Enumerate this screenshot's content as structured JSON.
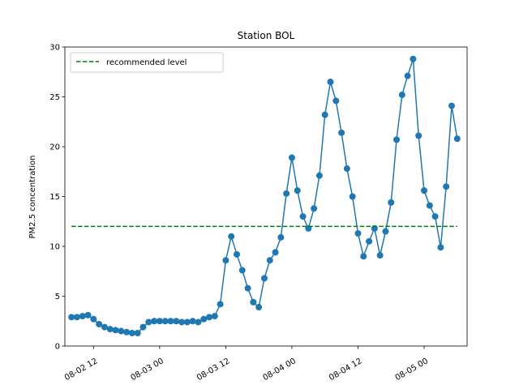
{
  "chart_data": {
    "type": "line",
    "title": "Station BOL",
    "xlabel": "",
    "ylabel": "PM2.5 concentration",
    "x_tick_labels": [
      "08-02 12",
      "08-03 00",
      "08-03 12",
      "08-04 00",
      "08-04 12",
      "08-05 00"
    ],
    "x_tick_hours": [
      12,
      24,
      36,
      48,
      60,
      72
    ],
    "y_ticks": [
      0,
      5,
      10,
      15,
      20,
      25,
      30
    ],
    "xlim": [
      6.8,
      79.8
    ],
    "ylim": [
      0,
      30
    ],
    "grid": false,
    "legend_position": "upper-left",
    "series": [
      {
        "type": "line-markers",
        "color": "#1f77b4",
        "x_hours": [
          8,
          9,
          10,
          11,
          12,
          13,
          14,
          15,
          16,
          17,
          18,
          19,
          20,
          21,
          22,
          23,
          24,
          25,
          26,
          27,
          28,
          29,
          30,
          31,
          32,
          33,
          34,
          35,
          36,
          37,
          38,
          39,
          40,
          41,
          42,
          43,
          44,
          45,
          46,
          47,
          48,
          49,
          50,
          51,
          52,
          53,
          54,
          55,
          56,
          57,
          58,
          59,
          60,
          61,
          62,
          63,
          64,
          65,
          66,
          67,
          68,
          69,
          70,
          71,
          72,
          73,
          74,
          75,
          76,
          77,
          78
        ],
        "values": [
          2.9,
          2.9,
          3.0,
          3.1,
          2.7,
          2.2,
          1.9,
          1.7,
          1.6,
          1.5,
          1.4,
          1.3,
          1.3,
          1.9,
          2.4,
          2.5,
          2.5,
          2.5,
          2.5,
          2.5,
          2.4,
          2.4,
          2.5,
          2.4,
          2.7,
          2.9,
          3.0,
          4.2,
          8.6,
          11.0,
          9.2,
          7.6,
          5.8,
          4.4,
          3.9,
          6.8,
          8.6,
          9.4,
          10.9,
          15.3,
          18.9,
          15.6,
          13.0,
          11.8,
          13.8,
          17.1,
          23.2,
          26.5,
          24.6,
          21.4,
          17.8,
          15.0,
          11.3,
          9.0,
          10.5,
          11.8,
          9.1,
          11.5,
          14.4,
          20.7,
          25.2,
          27.1,
          28.8,
          21.1,
          15.6,
          14.1,
          13.0,
          9.9,
          16.0,
          24.1,
          20.8
        ]
      },
      {
        "name": "recommended level",
        "type": "dashed-line",
        "color": "#008000",
        "x_hours": [
          8,
          78
        ],
        "values": [
          12,
          12
        ]
      }
    ]
  }
}
